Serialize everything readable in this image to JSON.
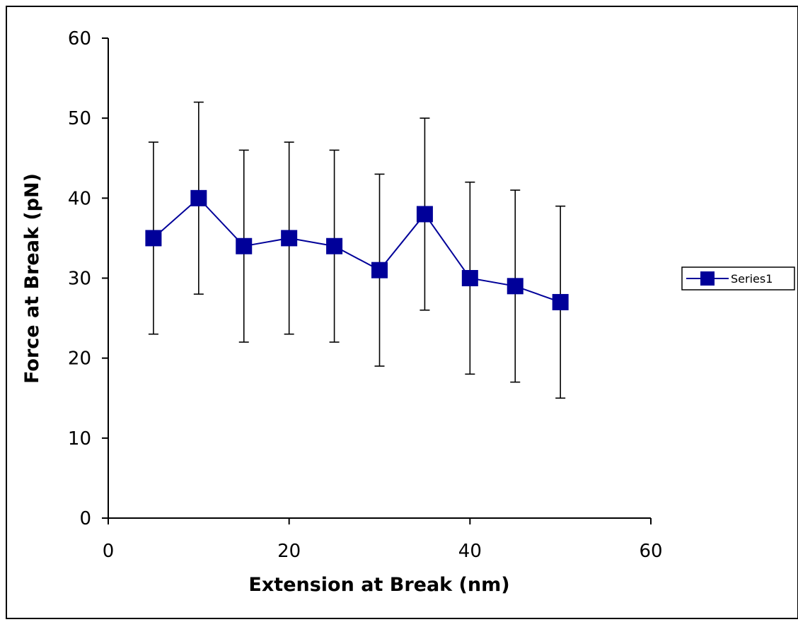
{
  "chart_data": {
    "type": "scatter",
    "title": "",
    "xlabel": "Extension at Break (nm)",
    "ylabel": "Force at Break (pN)",
    "xlim": [
      0,
      60
    ],
    "ylim": [
      0,
      60
    ],
    "xticks": [
      0,
      20,
      40,
      60
    ],
    "yticks": [
      0,
      10,
      20,
      30,
      40,
      50,
      60
    ],
    "grid": false,
    "legend_position": "right",
    "series": [
      {
        "name": "Series1",
        "color": "#000099",
        "marker": "square",
        "x": [
          5,
          10,
          15,
          20,
          25,
          30,
          35,
          40,
          45,
          50
        ],
        "y": [
          35,
          40,
          34,
          35,
          34,
          31,
          38,
          30,
          29,
          27
        ],
        "error_low": [
          23,
          28,
          22,
          23,
          22,
          19,
          26,
          18,
          17,
          15
        ],
        "error_high": [
          47,
          52,
          46,
          47,
          46,
          43,
          50,
          42,
          41,
          39
        ]
      }
    ]
  }
}
